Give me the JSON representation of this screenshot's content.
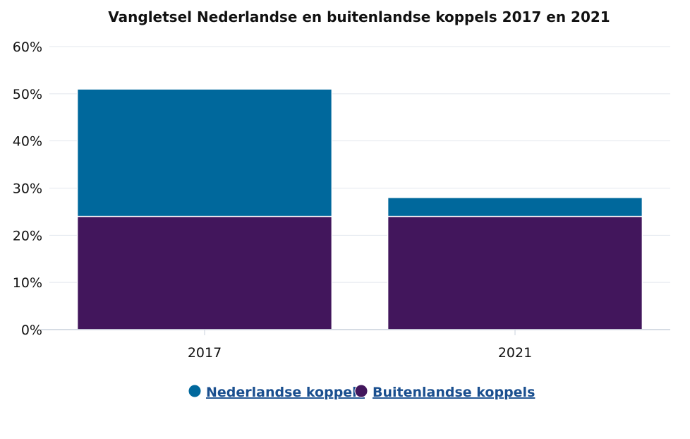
{
  "chart_data": {
    "type": "bar",
    "stacked": true,
    "title": "Vangletsel Nederlandse en buitenlandse koppels 2017 en 2021",
    "categories": [
      "2017",
      "2021"
    ],
    "series": [
      {
        "name": "Buitenlandse koppels",
        "color": "#42165c",
        "values": [
          24,
          24
        ]
      },
      {
        "name": "Nederlandse koppels",
        "color": "#00689c",
        "values": [
          27,
          4
        ]
      }
    ],
    "yaxis": {
      "min": 0,
      "max": 60,
      "ticks": [
        0,
        10,
        20,
        30,
        40,
        50,
        60
      ],
      "tick_labels": [
        "0%",
        "10%",
        "20%",
        "30%",
        "40%",
        "50%",
        "60%"
      ]
    },
    "grid": true,
    "legend": {
      "placement": "bottom",
      "order": [
        "Nederlandse koppels",
        "Buitenlandse koppels"
      ]
    }
  }
}
